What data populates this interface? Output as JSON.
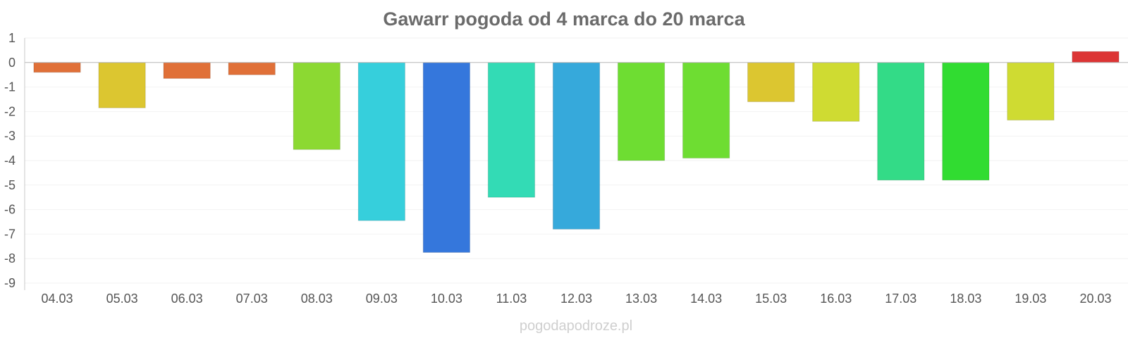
{
  "title": "Gawarr pogoda od 4 marca do 20 marca",
  "watermark": "pogodapodroze.pl",
  "chart_data": {
    "type": "bar",
    "title": "Gawarr pogoda od 4 marca do 20 marca",
    "xlabel": "",
    "ylabel": "",
    "ylim": [
      -9,
      1
    ],
    "yticks": [
      1,
      0,
      -1,
      -2,
      -3,
      -4,
      -5,
      -6,
      -7,
      -8,
      -9
    ],
    "grid": true,
    "legend": "none",
    "categories": [
      "04.03",
      "05.03",
      "06.03",
      "07.03",
      "08.03",
      "09.03",
      "10.03",
      "11.03",
      "12.03",
      "13.03",
      "14.03",
      "15.03",
      "16.03",
      "17.03",
      "18.03",
      "19.03",
      "20.03"
    ],
    "values": [
      -0.4,
      -1.85,
      -0.65,
      -0.5,
      -3.55,
      -6.45,
      -7.75,
      -5.5,
      -6.8,
      -4.0,
      -3.9,
      -1.6,
      -2.4,
      -4.8,
      -4.8,
      -2.35,
      0.45
    ],
    "colors": [
      "#e07038",
      "#dcc630",
      "#e07038",
      "#e07038",
      "#8cd932",
      "#36cfdc",
      "#3577dc",
      "#33dbb5",
      "#36a9db",
      "#6edd32",
      "#6edd32",
      "#dcc630",
      "#cfdb32",
      "#33db87",
      "#31dc31",
      "#cfdb32",
      "#dc3434"
    ]
  }
}
